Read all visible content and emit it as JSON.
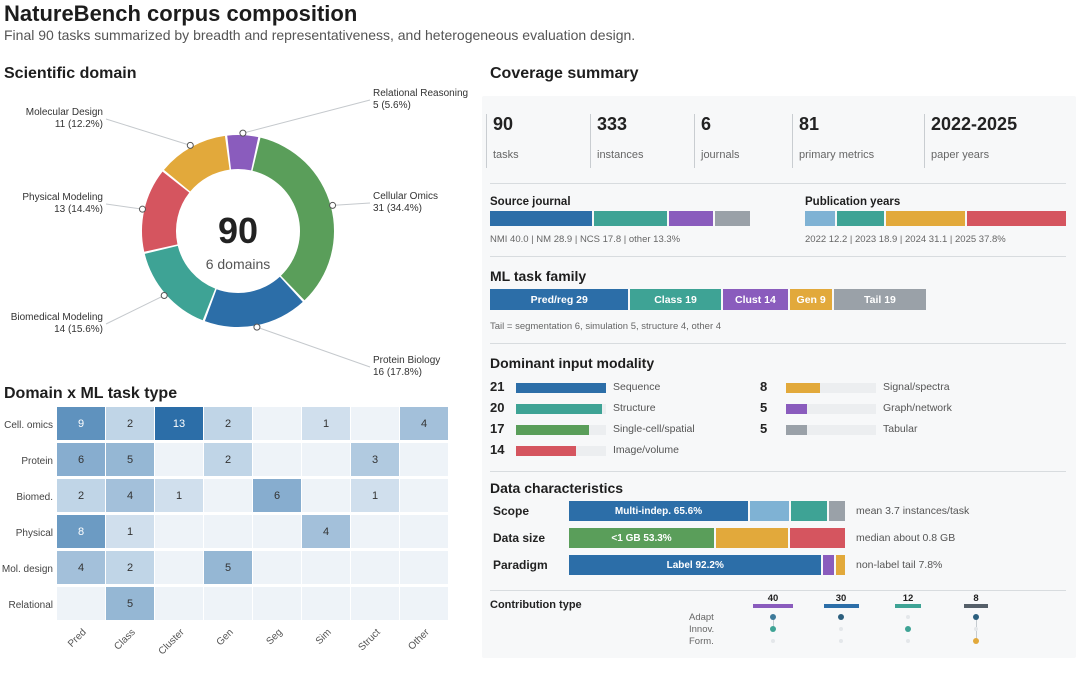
{
  "title": "NatureBench corpus composition",
  "subtitle": "Final 90 tasks summarized by breadth and representativeness, and heterogeneous evaluation design.",
  "sections": {
    "domain": "Scientific domain",
    "heatmap": "Domain x ML task type",
    "coverage": "Coverage summary"
  },
  "chart_data": [
    {
      "type": "pie",
      "title": "Scientific domain",
      "center_value": "90",
      "center_label": "6 domains",
      "slices": [
        {
          "label": "Cellular Omics",
          "value": 31,
          "text": "31 (34.4%)",
          "color": "#5a9e5a"
        },
        {
          "label": "Protein Biology",
          "value": 16,
          "text": "16 (17.8%)",
          "color": "#2c6ea8"
        },
        {
          "label": "Biomedical Modeling",
          "value": 14,
          "text": "14 (15.6%)",
          "color": "#3ea395"
        },
        {
          "label": "Physical Modeling",
          "value": 13,
          "text": "13 (14.4%)",
          "color": "#d5555f"
        },
        {
          "label": "Molecular Design",
          "value": 11,
          "text": "11 (12.2%)",
          "color": "#e2a93b"
        },
        {
          "label": "Relational Reasoning",
          "value": 5,
          "text": "5 (5.6%)",
          "color": "#8a5cbd"
        }
      ]
    },
    {
      "type": "heatmap",
      "title": "Domain x ML task type",
      "rows": [
        "Cell. omics",
        "Protein",
        "Biomed.",
        "Physical",
        "Mol. design",
        "Relational"
      ],
      "cols": [
        "Pred",
        "Class",
        "Cluster",
        "Gen",
        "Seg",
        "Sim",
        "Struct",
        "Other"
      ],
      "values": [
        [
          9,
          2,
          13,
          2,
          0,
          1,
          0,
          4
        ],
        [
          6,
          5,
          0,
          2,
          0,
          0,
          3,
          0
        ],
        [
          2,
          4,
          1,
          0,
          6,
          0,
          1,
          0
        ],
        [
          8,
          1,
          0,
          0,
          0,
          4,
          0,
          0
        ],
        [
          4,
          2,
          0,
          5,
          0,
          0,
          0,
          0
        ],
        [
          0,
          5,
          0,
          0,
          0,
          0,
          0,
          0
        ]
      ],
      "vmax": 13
    },
    {
      "type": "bar",
      "title": "Source journal",
      "categories": [
        "NMI",
        "NM",
        "NCS",
        "other"
      ],
      "values": [
        40.0,
        28.9,
        17.8,
        13.3
      ],
      "colors": [
        "#2c6ea8",
        "#3ea395",
        "#8a5cbd",
        "#9aa1a8"
      ]
    },
    {
      "type": "bar",
      "title": "Publication years",
      "categories": [
        "2022",
        "2023",
        "2024",
        "2025"
      ],
      "values": [
        12.2,
        18.9,
        31.1,
        37.8
      ],
      "colors": [
        "#7fb2d4",
        "#3ea395",
        "#e2a93b",
        "#d5555f"
      ]
    },
    {
      "type": "bar",
      "title": "ML task family",
      "categories": [
        "Pred/reg",
        "Class",
        "Clust",
        "Gen",
        "Tail"
      ],
      "values": [
        29,
        19,
        14,
        9,
        19
      ],
      "colors": [
        "#2c6ea8",
        "#3ea395",
        "#8a5cbd",
        "#e2a93b",
        "#9aa1a8"
      ]
    },
    {
      "type": "bar",
      "title": "Dominant input modality",
      "categories": [
        "Sequence",
        "Structure",
        "Single-cell/spatial",
        "Image/volume",
        "Signal/spectra",
        "Graph/network",
        "Tabular"
      ],
      "values": [
        21,
        20,
        17,
        14,
        8,
        5,
        5
      ],
      "colors": [
        "#2c6ea8",
        "#3ea395",
        "#5a9e5a",
        "#d5555f",
        "#e2a93b",
        "#8a5cbd",
        "#9aa1a8"
      ]
    },
    {
      "type": "bar",
      "title": "Contribution type",
      "categories": [
        "Adapt",
        "Innov.",
        "Form."
      ],
      "series": [
        {
          "value": 40,
          "color": "#8a5cbd",
          "dots": [
            1,
            1,
            0
          ]
        },
        {
          "value": 30,
          "color": "#2c6ea8",
          "dots": [
            1,
            0,
            0
          ]
        },
        {
          "value": 12,
          "color": "#3ea395",
          "dots": [
            0,
            1,
            0
          ]
        },
        {
          "value": 8,
          "color": "#555f69",
          "dots": [
            1,
            0,
            1
          ]
        }
      ]
    }
  ],
  "kpis": [
    {
      "value": "90",
      "label": "tasks"
    },
    {
      "value": "333",
      "label": "instances"
    },
    {
      "value": "6",
      "label": "journals"
    },
    {
      "value": "81",
      "label": "primary metrics"
    },
    {
      "value": "2022-2025",
      "label": "paper years"
    }
  ],
  "journal": {
    "title": "Source journal",
    "note": "NMI 40.0 | NM 28.9 | NCS 17.8 | other 13.3%"
  },
  "years": {
    "title": "Publication years",
    "note": "2022 12.2 | 2023 18.9 | 2024 31.1 | 2025 37.8%"
  },
  "family": {
    "title": "ML task family",
    "labels": [
      "Pred/reg 29",
      "Class 19",
      "Clust 14",
      "Gen 9",
      "Tail 19"
    ],
    "note": "Tail = segmentation 6, simulation 5, structure 4, other 4"
  },
  "modality": {
    "title": "Dominant input modality",
    "max": 21
  },
  "data_char": {
    "title": "Data characteristics",
    "rows": [
      {
        "label": "Scope",
        "note": "mean 3.7 instances/task",
        "segments": [
          {
            "text": "Multi-indep. 65.6%",
            "value": 65.6,
            "color": "#2c6ea8"
          },
          {
            "text": "",
            "value": 15.0,
            "color": "#7fb2d4"
          },
          {
            "text": "",
            "value": 13.5,
            "color": "#3ea395"
          },
          {
            "text": "",
            "value": 5.9,
            "color": "#9aa1a8"
          }
        ]
      },
      {
        "label": "Data size",
        "note": "median about 0.8 GB",
        "segments": [
          {
            "text": "<1 GB 53.3%",
            "value": 53.3,
            "color": "#5a9e5a"
          },
          {
            "text": "",
            "value": 26.7,
            "color": "#e2a93b"
          },
          {
            "text": "",
            "value": 20.0,
            "color": "#d5555f"
          }
        ]
      },
      {
        "label": "Paradigm",
        "note": "non-label tail 7.8%",
        "segments": [
          {
            "text": "Label 92.2%",
            "value": 92.2,
            "color": "#2c6ea8"
          },
          {
            "text": "",
            "value": 4.4,
            "color": "#8a5cbd"
          },
          {
            "text": "",
            "value": 3.4,
            "color": "#e2a93b"
          }
        ]
      }
    ]
  },
  "contribution": {
    "title": "Contribution type"
  }
}
